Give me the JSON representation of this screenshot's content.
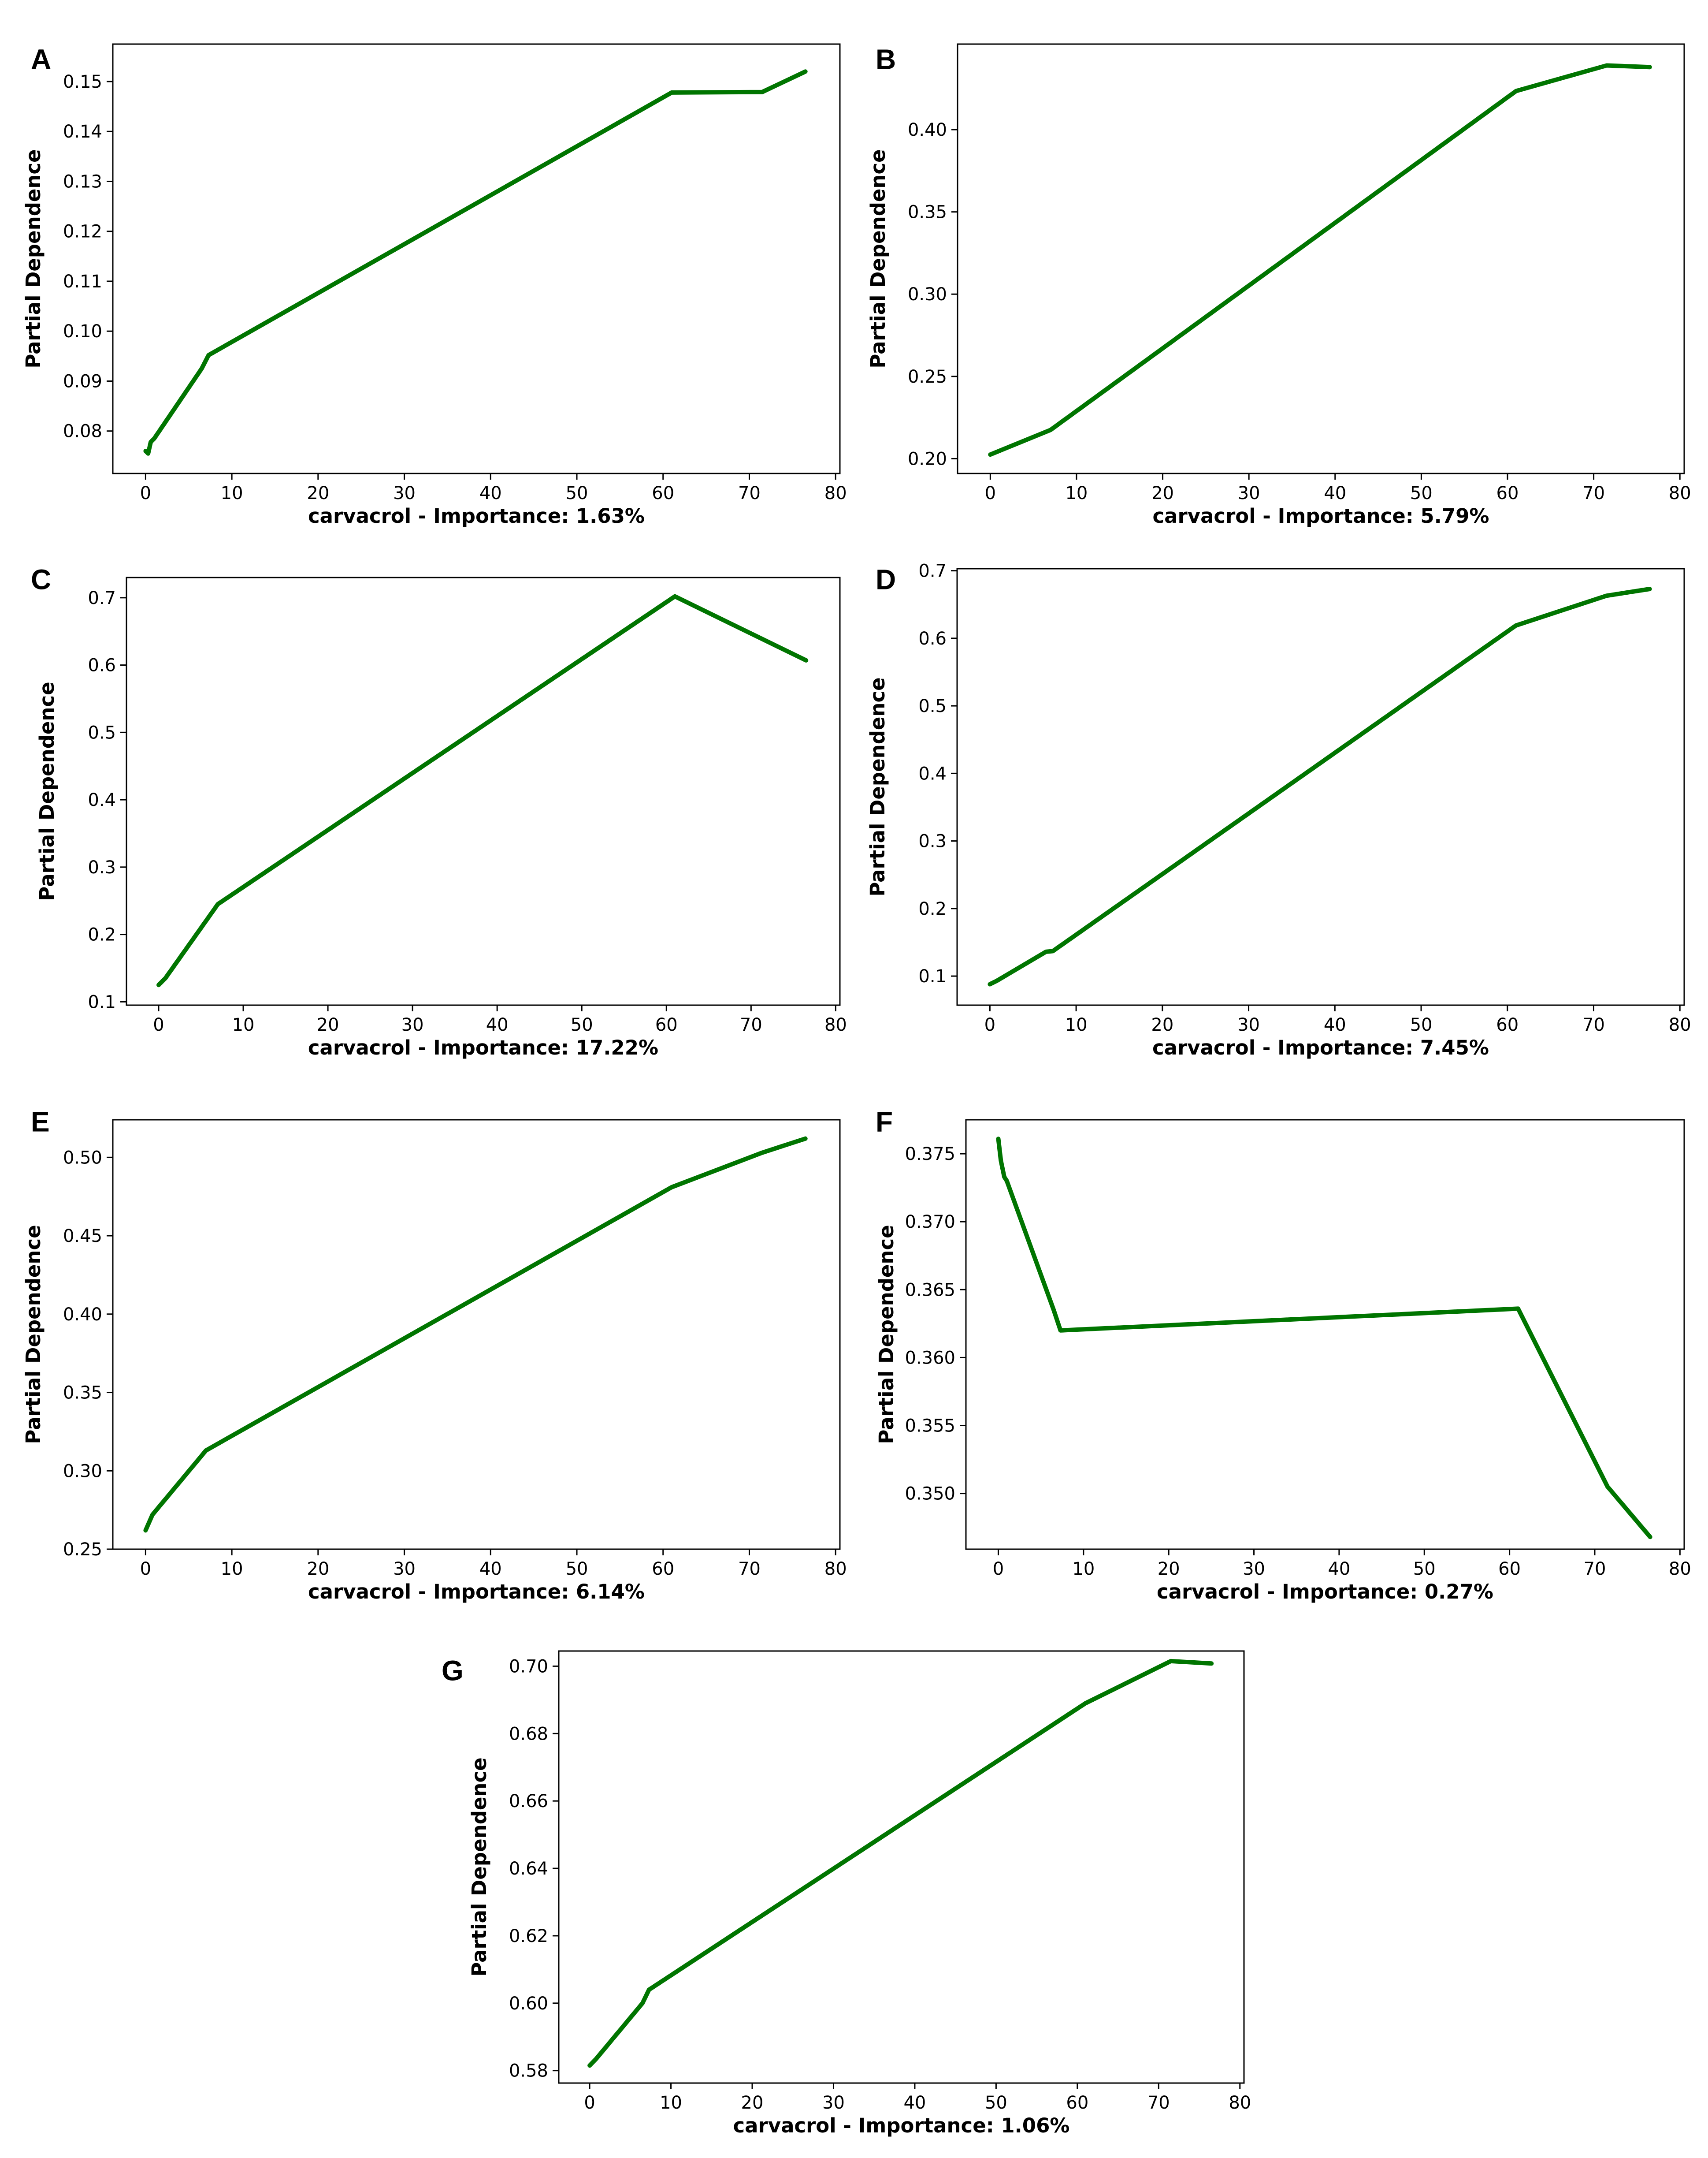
{
  "figure": {
    "line_color": "#007500",
    "panels": [
      {
        "letter": "A",
        "chart_data": {
          "type": "line",
          "xlabel": "carvacrol - Importance: 1.63%",
          "ylabel": "Partial Dependence",
          "xlim": [
            -3.8,
            80.5
          ],
          "ylim": [
            0.0715,
            0.1575
          ],
          "xticks": [
            0,
            10,
            20,
            30,
            40,
            50,
            60,
            70,
            80
          ],
          "xtick_labels": [
            "0",
            "10",
            "20",
            "30",
            "40",
            "50",
            "60",
            "70",
            "80"
          ],
          "yticks": [
            0.08,
            0.09,
            0.1,
            0.11,
            0.12,
            0.13,
            0.14,
            0.15
          ],
          "ytick_labels": [
            "0.08",
            "0.09",
            "0.10",
            "0.11",
            "0.12",
            "0.13",
            "0.14",
            "0.15"
          ],
          "series": [
            {
              "name": "partial dependence",
              "x": [
                0,
                0.3,
                0.6,
                1,
                6.5,
                7.3,
                61,
                71.5,
                76.5
              ],
              "y": [
                0.076,
                0.0755,
                0.0778,
                0.0785,
                0.0925,
                0.0952,
                0.1478,
                0.1479,
                0.152
              ]
            }
          ]
        }
      },
      {
        "letter": "B",
        "chart_data": {
          "type": "line",
          "xlabel": "carvacrol - Importance: 5.79%",
          "ylabel": "Partial Dependence",
          "xlim": [
            -3.8,
            80.5
          ],
          "ylim": [
            0.191,
            0.452
          ],
          "xticks": [
            0,
            10,
            20,
            30,
            40,
            50,
            60,
            70,
            80
          ],
          "xtick_labels": [
            "0",
            "10",
            "20",
            "30",
            "40",
            "50",
            "60",
            "70",
            "80"
          ],
          "yticks": [
            0.2,
            0.25,
            0.3,
            0.35,
            0.4
          ],
          "ytick_labels": [
            "0.20",
            "0.25",
            "0.30",
            "0.35",
            "0.40"
          ],
          "series": [
            {
              "name": "partial dependence",
              "x": [
                0,
                7,
                61,
                71.5,
                76.5
              ],
              "y": [
                0.2025,
                0.2175,
                0.4235,
                0.439,
                0.438
              ]
            }
          ]
        }
      },
      {
        "letter": "C",
        "chart_data": {
          "type": "line",
          "xlabel": "carvacrol - Importance: 17.22%",
          "ylabel": "Partial Dependence",
          "xlim": [
            -3.8,
            80.5
          ],
          "ylim": [
            0.095,
            0.73
          ],
          "xticks": [
            0,
            10,
            20,
            30,
            40,
            50,
            60,
            70,
            80
          ],
          "xtick_labels": [
            "0",
            "10",
            "20",
            "30",
            "40",
            "50",
            "60",
            "70",
            "80"
          ],
          "yticks": [
            0.1,
            0.2,
            0.3,
            0.4,
            0.5,
            0.6,
            0.7
          ],
          "ytick_labels": [
            "0.1",
            "0.2",
            "0.3",
            "0.4",
            "0.5",
            "0.6",
            "0.7"
          ],
          "series": [
            {
              "name": "partial dependence",
              "x": [
                0,
                0.8,
                7,
                61,
                76.5
              ],
              "y": [
                0.125,
                0.135,
                0.245,
                0.702,
                0.607
              ]
            }
          ]
        }
      },
      {
        "letter": "D",
        "chart_data": {
          "type": "line",
          "xlabel": "carvacrol - Importance: 7.45%",
          "ylabel": "Partial Dependence",
          "xlim": [
            -3.8,
            80.5
          ],
          "ylim": [
            0.057,
            0.703
          ],
          "xticks": [
            0,
            10,
            20,
            30,
            40,
            50,
            60,
            70,
            80
          ],
          "xtick_labels": [
            "0",
            "10",
            "20",
            "30",
            "40",
            "50",
            "60",
            "70",
            "80"
          ],
          "yticks": [
            0.1,
            0.2,
            0.3,
            0.4,
            0.5,
            0.6,
            0.7
          ],
          "ytick_labels": [
            "0.1",
            "0.2",
            "0.3",
            "0.4",
            "0.5",
            "0.6",
            "0.7"
          ],
          "series": [
            {
              "name": "partial dependence",
              "x": [
                0,
                0.8,
                6.5,
                7.3,
                61,
                71.5,
                76.5
              ],
              "y": [
                0.088,
                0.093,
                0.136,
                0.137,
                0.619,
                0.663,
                0.673
              ]
            }
          ]
        }
      },
      {
        "letter": "E",
        "chart_data": {
          "type": "line",
          "xlabel": "carvacrol - Importance: 6.14%",
          "ylabel": "Partial Dependence",
          "xlim": [
            -3.8,
            80.5
          ],
          "ylim": [
            0.25,
            0.524
          ],
          "xticks": [
            0,
            10,
            20,
            30,
            40,
            50,
            60,
            70,
            80
          ],
          "xtick_labels": [
            "0",
            "10",
            "20",
            "30",
            "40",
            "50",
            "60",
            "70",
            "80"
          ],
          "yticks": [
            0.25,
            0.3,
            0.35,
            0.4,
            0.45,
            0.5
          ],
          "ytick_labels": [
            "0.25",
            "0.30",
            "0.35",
            "0.40",
            "0.45",
            "0.50"
          ],
          "series": [
            {
              "name": "partial dependence",
              "x": [
                0,
                0.8,
                7,
                61,
                71.5,
                76.5
              ],
              "y": [
                0.262,
                0.272,
                0.313,
                0.481,
                0.503,
                0.512
              ]
            }
          ]
        }
      },
      {
        "letter": "F",
        "chart_data": {
          "type": "line",
          "xlabel": "carvacrol - Importance: 0.27%",
          "ylabel": "Partial Dependence",
          "xlim": [
            -3.8,
            80.5
          ],
          "ylim": [
            0.3459,
            0.3775
          ],
          "xticks": [
            0,
            10,
            20,
            30,
            40,
            50,
            60,
            70,
            80
          ],
          "xtick_labels": [
            "0",
            "10",
            "20",
            "30",
            "40",
            "50",
            "60",
            "70",
            "80"
          ],
          "yticks": [
            0.35,
            0.355,
            0.36,
            0.365,
            0.37,
            0.375
          ],
          "ytick_labels": [
            "0.350",
            "0.355",
            "0.360",
            "0.365",
            "0.370",
            "0.375"
          ],
          "series": [
            {
              "name": "partial dependence",
              "x": [
                0,
                0.3,
                0.7,
                1,
                6.5,
                7.3,
                61,
                71.5,
                76.5
              ],
              "y": [
                0.3761,
                0.3745,
                0.3733,
                0.373,
                0.3635,
                0.362,
                0.3636,
                0.3505,
                0.3468
              ]
            }
          ]
        }
      },
      {
        "letter": "G",
        "chart_data": {
          "type": "line",
          "xlabel": "carvacrol - Importance: 1.06%",
          "ylabel": "Partial Dependence",
          "xlim": [
            -3.8,
            80.5
          ],
          "ylim": [
            0.5763,
            0.7045
          ],
          "xticks": [
            0,
            10,
            20,
            30,
            40,
            50,
            60,
            70,
            80
          ],
          "xtick_labels": [
            "0",
            "10",
            "20",
            "30",
            "40",
            "50",
            "60",
            "70",
            "80"
          ],
          "yticks": [
            0.58,
            0.6,
            0.62,
            0.64,
            0.66,
            0.68,
            0.7
          ],
          "ytick_labels": [
            "0.58",
            "0.60",
            "0.62",
            "0.64",
            "0.66",
            "0.68",
            "0.70"
          ],
          "series": [
            {
              "name": "partial dependence",
              "x": [
                0,
                0.8,
                6.5,
                7.3,
                61,
                71.5,
                76.5
              ],
              "y": [
                0.5815,
                0.5835,
                0.6,
                0.604,
                0.689,
                0.7015,
                0.7008
              ]
            }
          ]
        }
      }
    ]
  }
}
